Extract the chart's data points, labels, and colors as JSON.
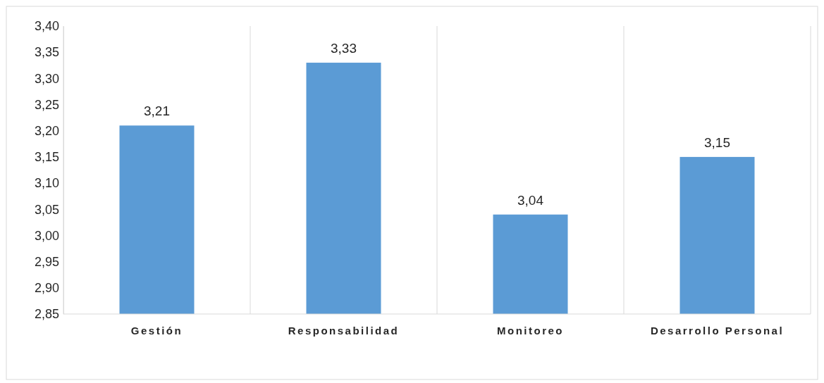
{
  "chart_data": {
    "type": "bar",
    "categories": [
      "Gestión",
      "Responsabilidad",
      "Monitoreo",
      "Desarrollo Personal"
    ],
    "values": [
      3.21,
      3.33,
      3.04,
      3.15
    ],
    "color": "#5b9bd5",
    "value_labels": [
      "3,21",
      "3,33",
      "3,04",
      "3,15"
    ],
    "ylim": [
      2.85,
      3.4
    ],
    "yticks": [
      {
        "value": 2.85,
        "label": "2,85"
      },
      {
        "value": 2.9,
        "label": "2,90"
      },
      {
        "value": 2.95,
        "label": "2,95"
      },
      {
        "value": 3.0,
        "label": "3,00"
      },
      {
        "value": 3.05,
        "label": "3,05"
      },
      {
        "value": 3.1,
        "label": "3,10"
      },
      {
        "value": 3.15,
        "label": "3,15"
      },
      {
        "value": 3.2,
        "label": "3,20"
      },
      {
        "value": 3.25,
        "label": "3,25"
      },
      {
        "value": 3.3,
        "label": "3,30"
      },
      {
        "value": 3.35,
        "label": "3,35"
      },
      {
        "value": 3.4,
        "label": "3,40"
      }
    ],
    "grid": "x"
  }
}
